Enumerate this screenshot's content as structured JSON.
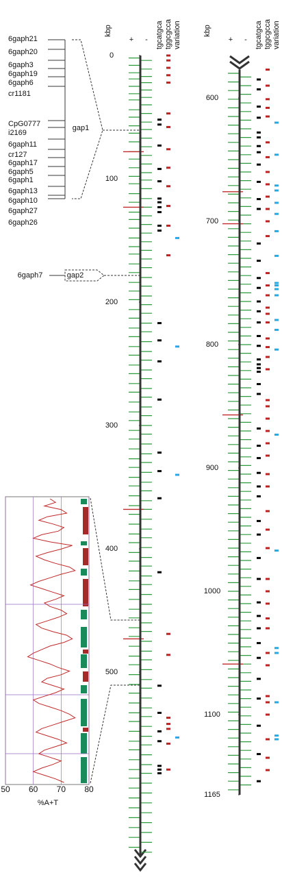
{
  "chart_data": {
    "type": "genome-map",
    "axis_title": "kbp",
    "strand_plus": "+",
    "strand_minus": "-",
    "track_names": [
      "tgcatgca",
      "tggcgcca",
      "variation"
    ],
    "left": {
      "ylim": [
        0,
        650
      ],
      "yticks": [
        0,
        100,
        200,
        300,
        400,
        500
      ],
      "plus": [
        2,
        8,
        14,
        19,
        25,
        31,
        36,
        44,
        50,
        57,
        63,
        70,
        78,
        84,
        91,
        98,
        104,
        112,
        119,
        127,
        133,
        140,
        148,
        155,
        161,
        169,
        176,
        184,
        191,
        198,
        206,
        213,
        221,
        228,
        236,
        243,
        251,
        258,
        266,
        273,
        281,
        289,
        296,
        304,
        311,
        319,
        327,
        334,
        342,
        349,
        357,
        365,
        372,
        380,
        388,
        395,
        403,
        410,
        418,
        426,
        433,
        441,
        449,
        456,
        464,
        471,
        479,
        487,
        494,
        502,
        510,
        517,
        525,
        533,
        540,
        548,
        556,
        563,
        571,
        579,
        586,
        594,
        602,
        610,
        618,
        626,
        634,
        642
      ],
      "minus": [
        4,
        11,
        17,
        22,
        28,
        34,
        40,
        47,
        54,
        60,
        67,
        74,
        81,
        88,
        95,
        101,
        108,
        116,
        123,
        130,
        137,
        144,
        151,
        158,
        165,
        172,
        180,
        187,
        195,
        202,
        209,
        217,
        224,
        232,
        240,
        247,
        255,
        262,
        270,
        277,
        285,
        292,
        300,
        307,
        315,
        323,
        330,
        338,
        346,
        353,
        361,
        368,
        376,
        384,
        391,
        399,
        407,
        414,
        422,
        429,
        437,
        445,
        452,
        460,
        467,
        475,
        483,
        490,
        498,
        506,
        513,
        521,
        529,
        536,
        544,
        552,
        559,
        567,
        575,
        582,
        590,
        598,
        606,
        614,
        622,
        630,
        638,
        646
      ],
      "cpg": [
        78,
        123,
        368,
        473
      ],
      "tgcatgca": [
        52,
        56,
        73,
        92,
        102,
        116,
        119,
        123,
        127,
        138,
        142,
        217,
        231,
        248,
        279,
        322,
        337,
        359,
        419,
        511,
        533,
        548,
        556,
        576,
        579,
        582
      ],
      "tggcgcca": [
        0,
        4,
        10,
        16,
        22,
        47,
        58,
        76,
        91,
        106,
        122,
        138,
        162,
        469,
        486,
        537,
        542,
        546,
        558,
        579
      ],
      "variation": [
        148,
        236,
        340,
        553
      ]
    },
    "right": {
      "ylim": [
        577,
        1165
      ],
      "yticks": [
        600,
        700,
        800,
        900,
        1000,
        1100,
        1165
      ],
      "plus": [
        580,
        587,
        594,
        601,
        608,
        615,
        622,
        629,
        636,
        643,
        650,
        657,
        664,
        671,
        678,
        685,
        692,
        699,
        706,
        713,
        720,
        727,
        734,
        741,
        748,
        755,
        762,
        769,
        776,
        783,
        790,
        797,
        804,
        811,
        818,
        825,
        832,
        839,
        846,
        853,
        860,
        867,
        874,
        881,
        888,
        895,
        902,
        909,
        916,
        923,
        930,
        937,
        944,
        951,
        958,
        965,
        972,
        979,
        986,
        993,
        1000,
        1007,
        1014,
        1021,
        1028,
        1035,
        1042,
        1049,
        1056,
        1063,
        1070,
        1077,
        1084,
        1091,
        1098,
        1105,
        1112,
        1119,
        1126,
        1133,
        1140,
        1147,
        1154,
        1161
      ],
      "minus": [
        583,
        590,
        597,
        604,
        611,
        618,
        625,
        632,
        639,
        646,
        653,
        660,
        667,
        674,
        681,
        688,
        695,
        702,
        709,
        716,
        723,
        730,
        737,
        744,
        751,
        758,
        765,
        772,
        779,
        786,
        793,
        800,
        807,
        814,
        821,
        828,
        835,
        842,
        849,
        856,
        863,
        870,
        877,
        884,
        891,
        898,
        905,
        912,
        919,
        926,
        933,
        940,
        947,
        954,
        961,
        968,
        975,
        982,
        989,
        996,
        1003,
        1010,
        1017,
        1024,
        1031,
        1038,
        1045,
        1052,
        1059,
        1066,
        1073,
        1080,
        1087,
        1094,
        1101,
        1108,
        1115,
        1122,
        1129,
        1136,
        1143,
        1150,
        1157
      ],
      "cpg": [
        676,
        702,
        857,
        1059
      ],
      "tgcatgca": [
        585,
        593,
        607,
        616,
        628,
        632,
        639,
        644,
        654,
        668,
        682,
        690,
        718,
        732,
        746,
        754,
        765,
        773,
        782,
        793,
        801,
        812,
        816,
        819,
        822,
        832,
        840,
        868,
        882,
        892,
        904,
        915,
        923,
        943,
        954,
        973,
        990,
        1009,
        1020,
        1030,
        1042,
        1054,
        1071,
        1087,
        1109,
        1132,
        1154
      ],
      "tggcgcca": [
        577,
        590,
        601,
        608,
        615,
        636,
        648,
        660,
        670,
        680,
        690,
        700,
        712,
        742,
        752,
        760,
        770,
        775,
        782,
        795,
        802,
        810,
        820,
        845,
        850,
        860,
        870,
        880,
        890,
        905,
        915,
        935,
        950,
        965,
        990,
        1000,
        1010,
        1022,
        1030,
        1050,
        1060,
        1085,
        1090,
        1100,
        1120,
        1135,
        1145
      ],
      "variation": [
        620,
        646,
        671,
        675,
        685,
        694,
        708,
        728,
        750,
        752,
        755,
        760,
        780,
        788,
        804,
        873,
        967,
        1046,
        1050,
        1090,
        1117,
        1120
      ]
    },
    "gap1": {
      "label": "gap1",
      "members": [
        "6gaph21",
        "6gaph20",
        "6gaph3",
        "6gaph19",
        "6gaph6",
        "cr1181",
        "CpG0777",
        "i2169",
        "6gaph11",
        "cr127",
        "6gaph17",
        "6gaph5",
        "6gaph1",
        "6gaph13",
        "6gaph10",
        "6gaph27",
        "6gaph26"
      ]
    },
    "gap2": {
      "label": "gap2",
      "members": [
        "6gaph7"
      ]
    },
    "inset": {
      "xlabel": "%A+T",
      "xlim": [
        50,
        80
      ],
      "xticks": [
        50,
        60,
        70,
        80
      ],
      "values": [
        66,
        68,
        64,
        70,
        72,
        65,
        62,
        67,
        71,
        69,
        63,
        60,
        66,
        74,
        70,
        65,
        61,
        64,
        68,
        73,
        75,
        70,
        66,
        62,
        59,
        63,
        67,
        71,
        68,
        64,
        66,
        70,
        72,
        69,
        65,
        61,
        63,
        67,
        72,
        74,
        71,
        66,
        63,
        60,
        58,
        62,
        66,
        69,
        73,
        70,
        65,
        63,
        67,
        71,
        68,
        64,
        60,
        62,
        66,
        70,
        73,
        75,
        71,
        67,
        63,
        61,
        65,
        69,
        72,
        68,
        64,
        62,
        66,
        70,
        67,
        63,
        60,
        64,
        68,
        71
      ]
    }
  }
}
